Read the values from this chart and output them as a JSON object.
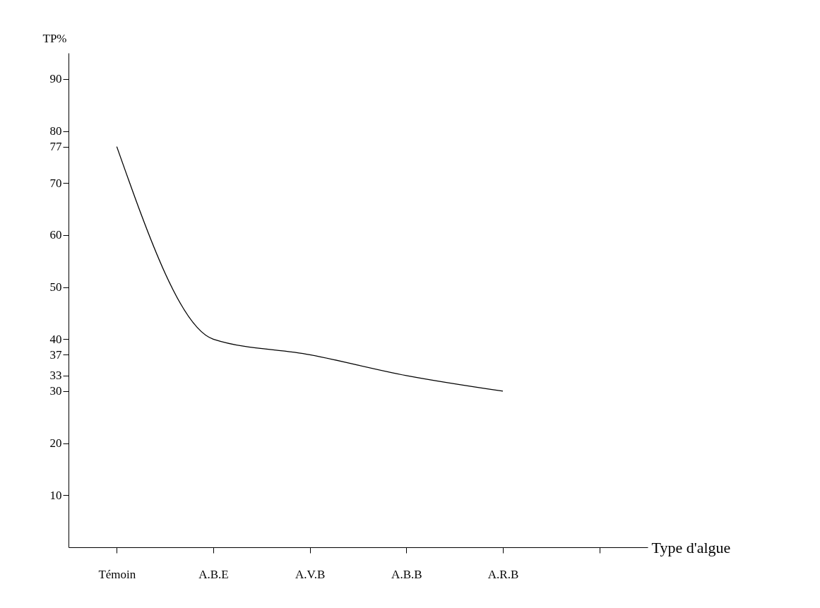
{
  "chart_data": {
    "type": "line",
    "xlabel": "Type d'algue",
    "ylabel": "TP%",
    "categories": [
      "Témoin",
      "A.B.E",
      "A.V.B",
      "A.B.B",
      "A.R.B",
      null
    ],
    "series": [
      {
        "color": "#000000",
        "values": [
          77,
          40,
          37,
          33,
          30,
          null
        ]
      }
    ],
    "ylim": [
      0,
      95
    ],
    "yticks": [
      10,
      20,
      30,
      33,
      37,
      40,
      50,
      60,
      70,
      77,
      80,
      90
    ],
    "grid": false,
    "marker": "none",
    "line_style": "solid"
  }
}
